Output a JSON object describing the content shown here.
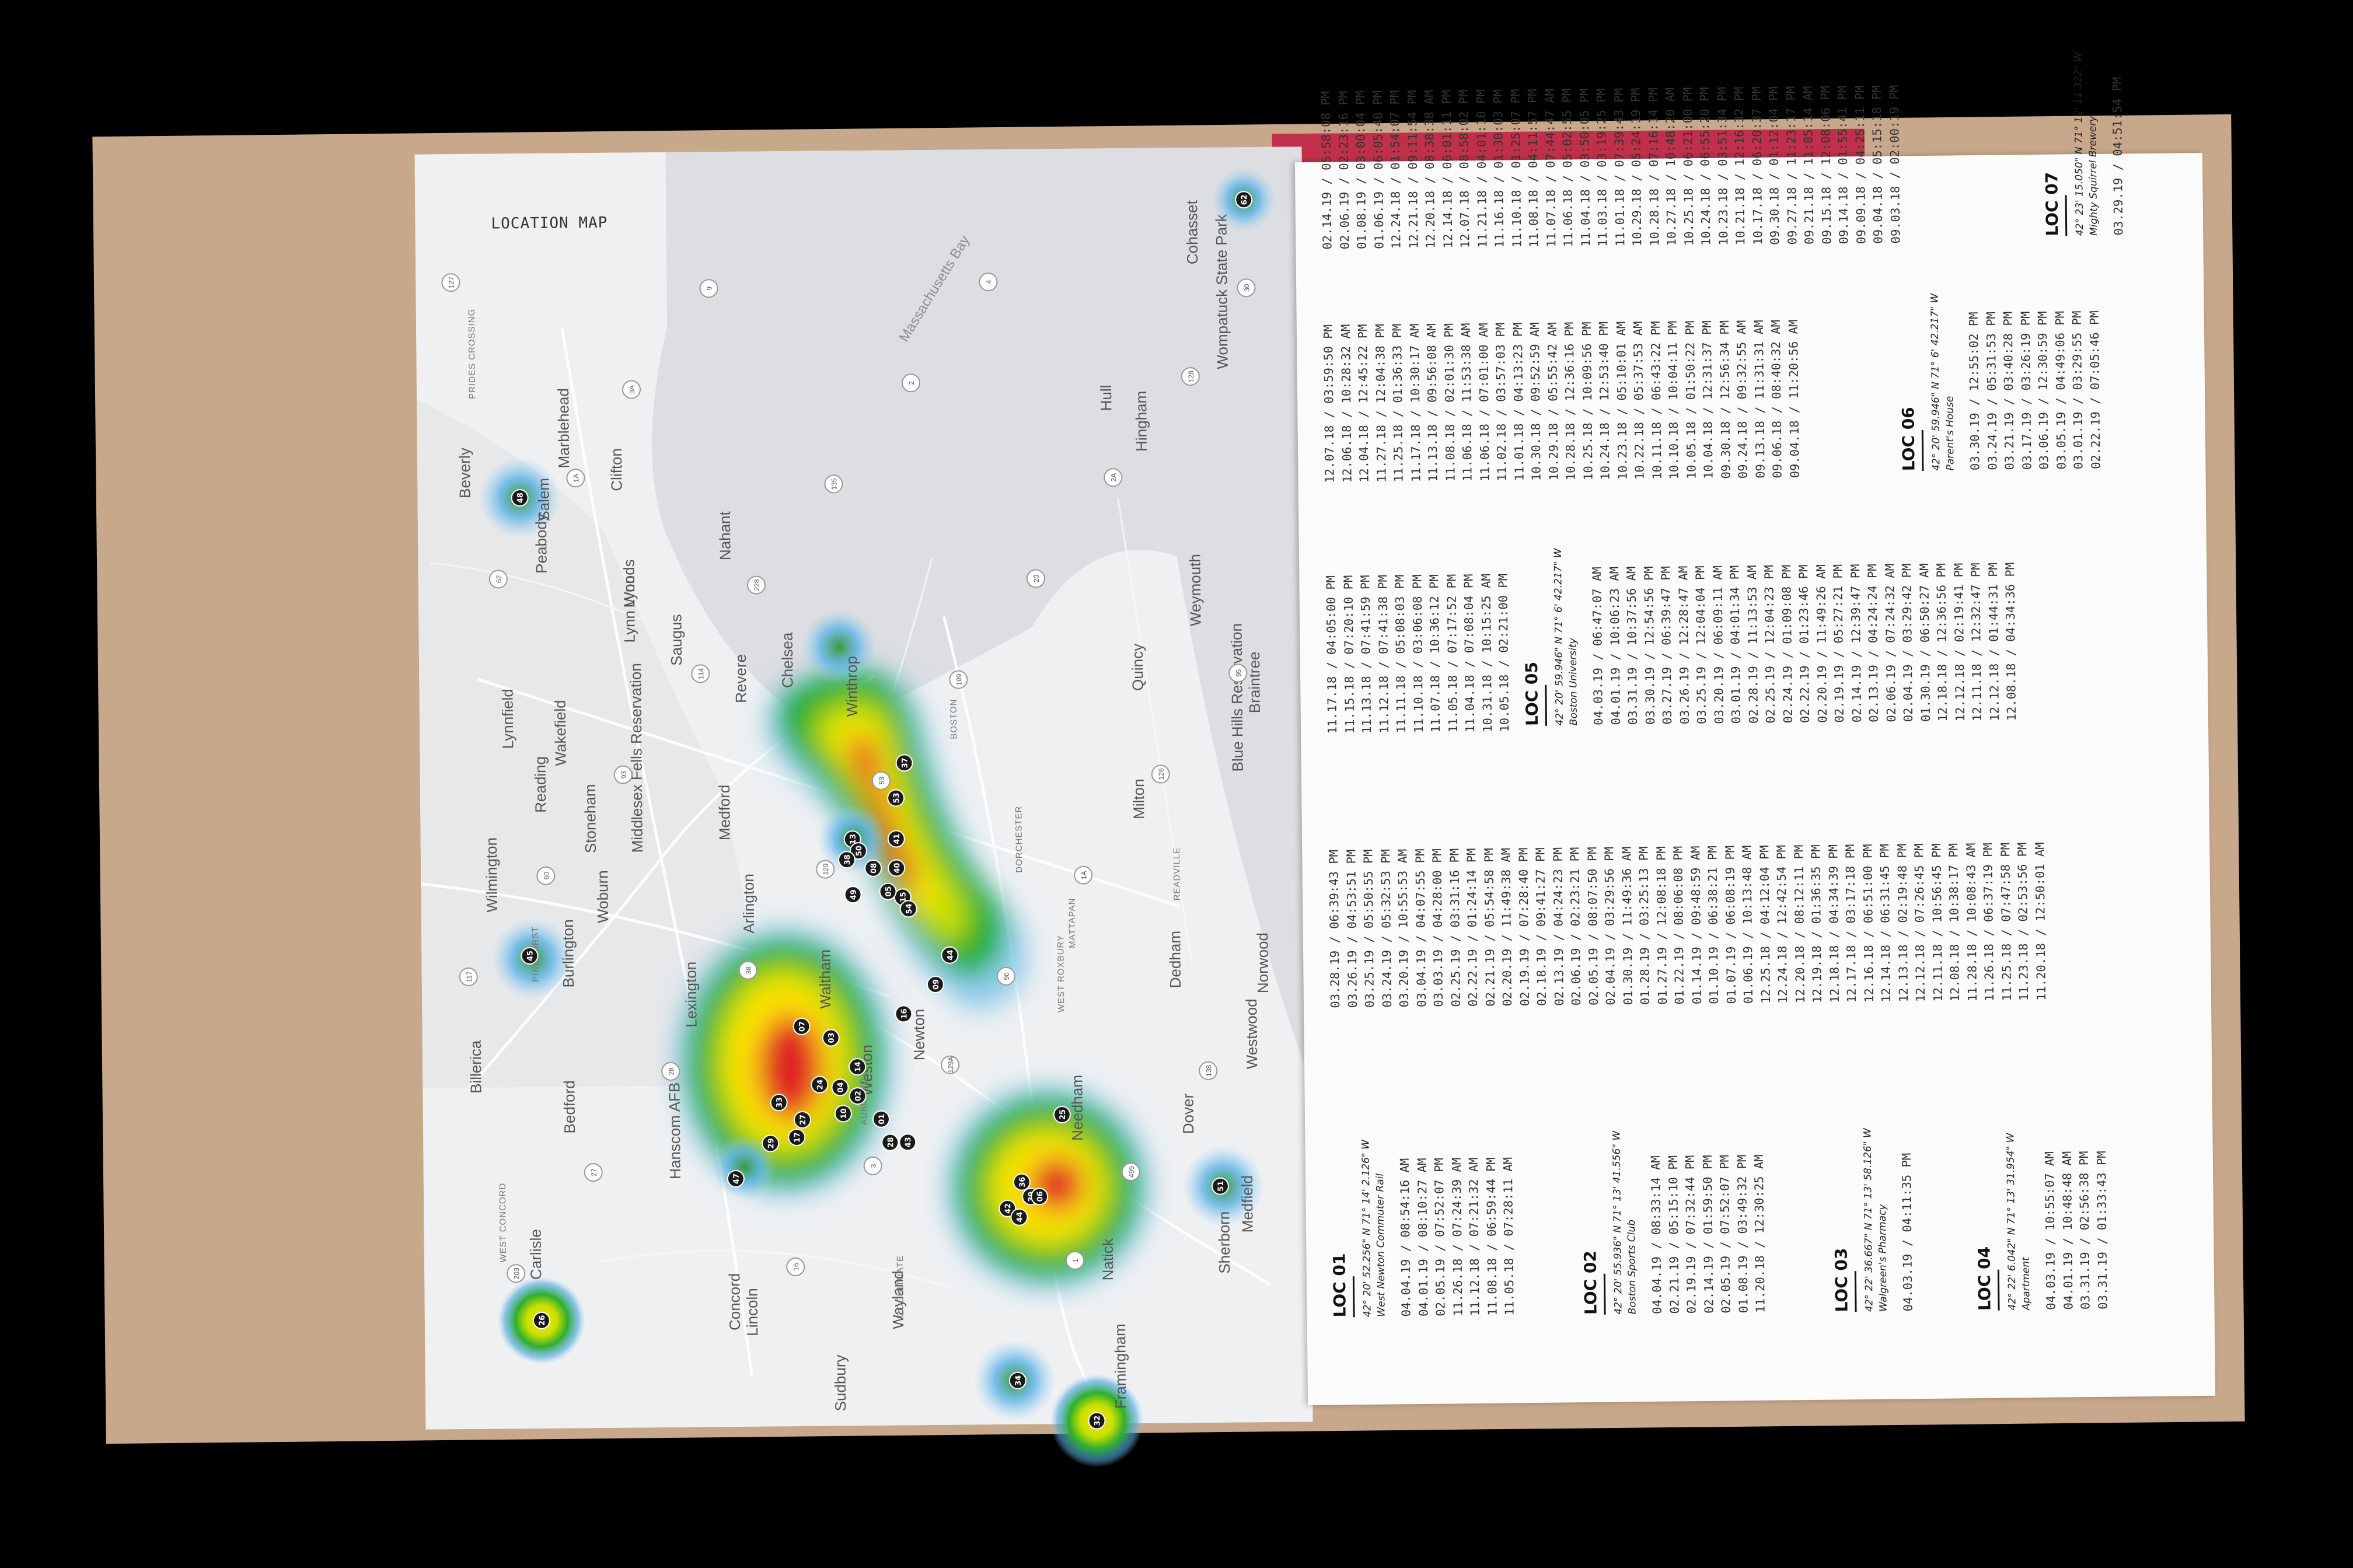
{
  "map": {
    "title": "LOCATION MAP",
    "water_labels": [
      "Massachusetts Bay"
    ],
    "town_labels": [
      "Beverly",
      "Salem",
      "Marblehead",
      "Peabody",
      "Clifton",
      "Lynn",
      "Lynn Woods",
      "Saugus",
      "Nahant",
      "Revere",
      "Winthrop",
      "Chelsea",
      "Lynnfield",
      "Wakefield",
      "Reading",
      "Stoneham",
      "Middlesex Fells Reservation",
      "Medford",
      "Wilmington",
      "Woburn",
      "Burlington",
      "Arlington",
      "Lexington",
      "Billerica",
      "Bedford",
      "Hanscom AFB",
      "Concord",
      "Lincoln",
      "Carlisle",
      "Weston",
      "Waltham",
      "Newton",
      "Wayland",
      "Sudbury",
      "Natick",
      "Needham",
      "Dover",
      "Sherborn",
      "Medfield",
      "Dedham",
      "Westwood",
      "Norwood",
      "Milton",
      "Quincy",
      "Braintree",
      "Weymouth",
      "Hingham",
      "Hull",
      "Cohasset",
      "Wompatuck State Park",
      "Blue Hills Reservation",
      "Framingham"
    ],
    "district_labels": [
      "PRIDES CROSSING",
      "PINEHURST",
      "WEST CONCORD",
      "COCHITUATE",
      "AUBURNDALE",
      "WEST ROXBURY",
      "DORCHESTER",
      "MATTAPAN",
      "READVILLE",
      "BOSTON"
    ],
    "route_labels": [
      "127",
      "1A",
      "114",
      "129",
      "129A",
      "1",
      "128",
      "62",
      "93",
      "38",
      "3",
      "4",
      "2A",
      "95",
      "60",
      "28",
      "16",
      "2",
      "20",
      "126",
      "117",
      "27",
      "9",
      "135",
      "109",
      "1A",
      "138",
      "203",
      "3A",
      "228",
      "53",
      "90",
      "495",
      "30"
    ],
    "markers": [
      "48",
      "13",
      "37",
      "53",
      "41",
      "40",
      "15",
      "08",
      "05",
      "54",
      "49",
      "50",
      "38",
      "44",
      "09",
      "16",
      "07",
      "03",
      "24",
      "14",
      "02",
      "10",
      "04",
      "27",
      "33",
      "17",
      "29",
      "01",
      "28",
      "43",
      "47",
      "36",
      "39",
      "42",
      "06",
      "44",
      "25",
      "45",
      "51",
      "26",
      "34",
      "32",
      "62"
    ]
  },
  "locations": [
    {
      "id": "LOC 01",
      "coord": "42° 20' 52.256\" N 71° 14' 2.126\" W",
      "place": "West Newton Commuter Rail",
      "columns": [
        [
          "04.04.19 / 08:54:16 AM",
          "04.01.19 / 08:10:27 AM",
          "02.05.19 / 07:52:07 PM",
          "11.26.18 / 07:24:39 AM",
          "11.12.18 / 07:21:32 AM",
          "11.08.18 / 06:59:44 PM",
          "11.05.18 / 07:28:11 AM"
        ],
        [
          "03.28.19 / 06:39:43 PM",
          "03.26.19 / 04:53:51 PM",
          "03.25.19 / 05:50:55 PM",
          "03.24.19 / 05:32:53 PM",
          "03.20.19 / 10:55:53 AM",
          "03.04.19 / 04:07:55 PM",
          "03.03.19 / 04:28:00 PM",
          "02.25.19 / 03:31:16 PM",
          "02.22.19 / 01:24:14 PM",
          "02.21.19 / 05:54:58 PM",
          "02.20.19 / 11:49:38 AM",
          "02.19.19 / 07:28:40 PM",
          "02.18.19 / 09:41:27 PM",
          "02.13.19 / 04:24:23 PM",
          "02.06.19 / 02:23:21 PM",
          "02.05.19 / 08:07:50 PM",
          "02.04.19 / 03:29:56 PM",
          "01.30.19 / 11:49:36 AM",
          "01.28.19 / 03:25:13 PM",
          "01.27.19 / 12:08:18 PM",
          "01.22.19 / 08:06:08 PM",
          "01.14.19 / 09:48:59 AM",
          "01.10.19 / 06:38:21 PM",
          "01.07.19 / 06:08:19 PM",
          "01.06.19 / 10:13:48 AM",
          "12.25.18 / 04:12:04 PM",
          "12.24.18 / 12:42:54 PM",
          "12.20.18 / 08:12:11 PM",
          "12.19.18 / 01:36:35 PM",
          "12.18.18 / 04:34:39 PM",
          "12.17.18 / 03:17:18 PM",
          "12.16.18 / 06:51:00 PM",
          "12.14.18 / 06:31:45 PM",
          "12.13.18 / 02:19:48 PM",
          "12.12.18 / 07:26:45 PM",
          "12.11.18 / 10:56:45 PM",
          "12.08.18 / 10:38:17 PM",
          "11.28.18 / 10:08:43 AM",
          "11.26.18 / 06:37:19 PM",
          "11.25.18 / 07:47:58 PM",
          "11.23.18 / 02:53:56 PM",
          "11.20.18 / 12:50:01 AM"
        ],
        [
          "11.17.18 / 04:05:00 PM",
          "11.15.18 / 07:20:10 PM",
          "11.13.18 / 07:41:59 PM",
          "11.12.18 / 07:41:38 PM",
          "11.11.18 / 05:08:03 PM",
          "11.10.18 / 03:06:08 PM",
          "11.07.18 / 10:36:12 PM",
          "11.05.18 / 07:17:52 PM",
          "11.04.18 / 07:08:04 PM",
          "10.31.18 / 10:15:25 AM",
          "10.05.18 / 02:21:00 PM"
        ],
        [
          "12.07.18 / 03:59:50 PM",
          "12.06.18 / 10:28:32 AM",
          "12.04.18 / 12:45:22 PM",
          "11.27.18 / 12:04:38 PM",
          "11.25.18 / 01:36:33 PM",
          "11.17.18 / 10:30:17 AM",
          "11.13.18 / 09:56:08 AM",
          "11.08.18 / 02:01:30 PM",
          "11.06.18 / 11:53:38 AM",
          "11.06.18 / 07:01:00 AM",
          "11.02.18 / 03:57:03 PM",
          "11.01.18 / 04:13:23 PM",
          "10.30.18 / 09:52:59 AM",
          "10.29.18 / 05:55:42 AM",
          "10.28.18 / 12:36:16 PM",
          "10.25.18 / 10:09:56 PM",
          "10.24.18 / 12:53:40 PM",
          "10.23.18 / 05:10:01 AM",
          "10.22.18 / 05:37:53 AM",
          "10.11.18 / 06:43:22 PM",
          "10.10.18 / 10:04:11 PM",
          "10.05.18 / 01:50:22 PM",
          "10.04.18 / 12:31:37 PM",
          "09.30.18 / 12:56:34 PM",
          "09.24.18 / 09:32:55 AM",
          "09.13.18 / 11:31:31 AM",
          "09.06.18 / 08:40:32 AM",
          "09.04.18 / 11:20:56 AM"
        ],
        [
          "02.14.19 / 05:58:08 PM",
          "02.06.19 / 02:23:16 PM",
          "01.08.19 / 03:00:04 PM",
          "01.06.19 / 06:05:40 PM",
          "12.24.18 / 01:54:07 PM",
          "12.21.18 / 09:11:54 PM",
          "12.20.18 / 08:38:38 AM",
          "12.14.18 / 06:01:11 PM",
          "12.07.18 / 08:58:02 PM",
          "11.21.18 / 04:01:10 PM",
          "11.16.18 / 01:30:03 PM",
          "11.10.18 / 01:25:07 PM",
          "11.08.18 / 04:11:57 PM",
          "11.07.18 / 07:44:47 AM",
          "11.06.18 / 05:02:55 PM",
          "11.04.18 / 03:50:05 PM",
          "11.03.18 / 03:19:25 PM",
          "11.01.18 / 07:39:43 PM",
          "10.29.18 / 05:24:19 PM",
          "10.28.18 / 07:16:14 PM",
          "10.27.18 / 10:48:20 AM",
          "10.25.18 / 06:21:00 PM",
          "10.24.18 / 06:55:20 PM",
          "10.23.18 / 03:51:34 PM",
          "10.21.18 / 12:16:32 PM",
          "10.17.18 / 06:20:37 PM",
          "09.30.18 / 01:12:04 PM",
          "09.27.18 / 11:23:17 PM",
          "09.21.18 / 11:05:14 AM",
          "09.15.18 / 12:08:06 PM",
          "09.14.18 / 01:55:41 PM",
          "09.09.18 / 04:25:11 PM",
          "09.04.18 / 05:15:18 PM",
          "09.03.18 / 02:00:19 PM"
        ]
      ]
    },
    {
      "id": "LOC 02",
      "coord": "42° 20' 55.936\" N 71° 13' 41.556\" W",
      "place": "Boston Sports Club",
      "entries": [
        "04.04.19 / 08:33:14 AM",
        "02.21.19 / 05:15:10 PM",
        "02.19.19 / 07:32:44 PM",
        "02.14.19 / 01:59:50 PM",
        "02.05.19 / 07:52:07 PM",
        "01.08.19 / 03:49:32 PM",
        "11.20.18 / 12:30:25 AM"
      ]
    },
    {
      "id": "LOC 03",
      "coord": "42° 22' 36.667\" N 71° 13' 58.126\" W",
      "place": "Walgreen's Pharmacy",
      "entries": [
        "04.03.19 / 04:11:35 PM"
      ]
    },
    {
      "id": "LOC 04",
      "coord": "42° 22' 6.042\" N 71° 13' 31.954\" W",
      "place": "Apartment",
      "entries": [
        "04.03.19 / 10:55:07 AM",
        "04.01.19 / 10:48:48 AM",
        "03.31.19 / 02:56:38 PM",
        "03.31.19 / 01:33:43 PM"
      ]
    },
    {
      "id": "LOC 05",
      "coord": "42° 20' 59.946\" N 71° 6' 42.217\" W",
      "place": "Boston University",
      "entries": [
        "04.03.19 / 06:47:07 AM",
        "04.01.19 / 10:06:23 AM",
        "03.31.19 / 10:37:56 AM",
        "03.30.19 / 12:54:56 PM",
        "03.27.19 / 06:39:47 PM",
        "03.26.19 / 12:28:47 AM",
        "03.25.19 / 12:04:04 PM",
        "03.20.19 / 06:09:11 AM",
        "03.01.19 / 04:01:34 PM",
        "02.28.19 / 11:13:53 AM",
        "02.25.19 / 12:04:23 PM",
        "02.24.19 / 01:09:08 PM",
        "02.22.19 / 01:23:46 PM",
        "02.20.19 / 11:49:26 AM",
        "02.19.19 / 05:27:21 PM",
        "02.14.19 / 12:39:47 PM",
        "02.13.19 / 04:24:24 PM",
        "02.06.19 / 07:24:32 AM",
        "02.04.19 / 03:29:42 PM",
        "01.30.19 / 06:50:27 AM",
        "12.18.18 / 12:36:56 PM",
        "12.12.18 / 02:19:41 PM",
        "12.11.18 / 12:32:47 PM",
        "12.12.18 / 01:44:31 PM",
        "12.08.18 / 04:34:36 PM"
      ]
    },
    {
      "id": "LOC 06",
      "coord": "42° 20' 59.946\" N 71° 6' 42.217\" W",
      "place": "Parent's House",
      "entries": [
        "03.30.19 / 12:55:02 PM",
        "03.24.19 / 05:31:53 PM",
        "03.21.19 / 03:40:28 PM",
        "03.17.19 / 03:26:19 PM",
        "03.06.19 / 12:30:59 PM",
        "03.05.19 / 04:49:06 PM",
        "03.01.19 / 03:29:55 PM",
        "02.22.19 / 07:05:46 PM"
      ]
    },
    {
      "id": "LOC 07",
      "coord": "42° 23' 15.050\" N 71° 12' 11.322\" W",
      "place": "Mighty Squirrel Brewery",
      "entries": [
        "03.29.19 / 04:51:54 PM"
      ]
    }
  ]
}
